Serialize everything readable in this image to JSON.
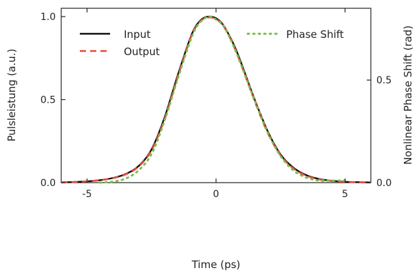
{
  "chart_data": {
    "type": "line",
    "title": "",
    "xlabel": "Time (ps)",
    "ylabel_left": "Pulsleistung (a.u.)",
    "ylabel_right": "Nonlinear Phase Shift (rad)",
    "xlim": [
      -6,
      6
    ],
    "ylim_left": [
      0,
      1.05
    ],
    "ylim_right": [
      0,
      0.85
    ],
    "x_ticks": [
      -5,
      0,
      5
    ],
    "x_tick_labels": [
      "-5",
      "0",
      "5"
    ],
    "y_left_ticks": [
      0,
      0.5,
      1.0
    ],
    "y_left_tick_labels": [
      "0.0",
      "0.5",
      "1.0"
    ],
    "y_right_ticks": [
      0,
      0.5
    ],
    "y_right_tick_labels": [
      "0.0",
      "0.5"
    ],
    "grid": false,
    "legend": [
      {
        "label": "Input",
        "color": "#111111",
        "style": "solid",
        "position": "top-left"
      },
      {
        "label": "Output",
        "color": "#e8473a",
        "style": "dashed",
        "position": "top-left"
      },
      {
        "label": "Phase Shift",
        "color": "#79bf4b",
        "style": "dotted",
        "position": "top-right"
      }
    ],
    "x": [
      -6,
      -5.5,
      -5,
      -4.5,
      -4,
      -3.5,
      -3,
      -2.5,
      -2,
      -1.5,
      -1,
      -0.75,
      -0.5,
      -0.25,
      0,
      0.25,
      0.5,
      0.75,
      1,
      1.5,
      2,
      2.5,
      3,
      3.5,
      4,
      4.5,
      5,
      5.5,
      6
    ],
    "series": [
      {
        "name": "Input",
        "axis": "left",
        "values": [
          0.002,
          0.004,
          0.008,
          0.015,
          0.028,
          0.052,
          0.1,
          0.2,
          0.39,
          0.64,
          0.87,
          0.95,
          0.99,
          1.0,
          0.99,
          0.955,
          0.89,
          0.81,
          0.71,
          0.5,
          0.31,
          0.17,
          0.09,
          0.045,
          0.022,
          0.011,
          0.005,
          0.003,
          0.001
        ]
      },
      {
        "name": "Output",
        "axis": "left",
        "values": [
          0.002,
          0.004,
          0.008,
          0.015,
          0.027,
          0.05,
          0.097,
          0.195,
          0.38,
          0.63,
          0.865,
          0.945,
          0.985,
          0.995,
          0.985,
          0.95,
          0.885,
          0.8,
          0.7,
          0.49,
          0.3,
          0.165,
          0.085,
          0.042,
          0.02,
          0.01,
          0.005,
          0.003,
          0.001
        ]
      },
      {
        "name": "Phase Shift",
        "axis": "right",
        "values": [
          null,
          null,
          null,
          0.0,
          0.005,
          0.02,
          0.06,
          0.14,
          0.3,
          0.5,
          0.69,
          0.76,
          0.795,
          0.81,
          0.795,
          0.77,
          0.715,
          0.645,
          0.565,
          0.4,
          0.245,
          0.13,
          0.06,
          0.025,
          0.01,
          0.01,
          0.01,
          null,
          null
        ]
      }
    ]
  }
}
